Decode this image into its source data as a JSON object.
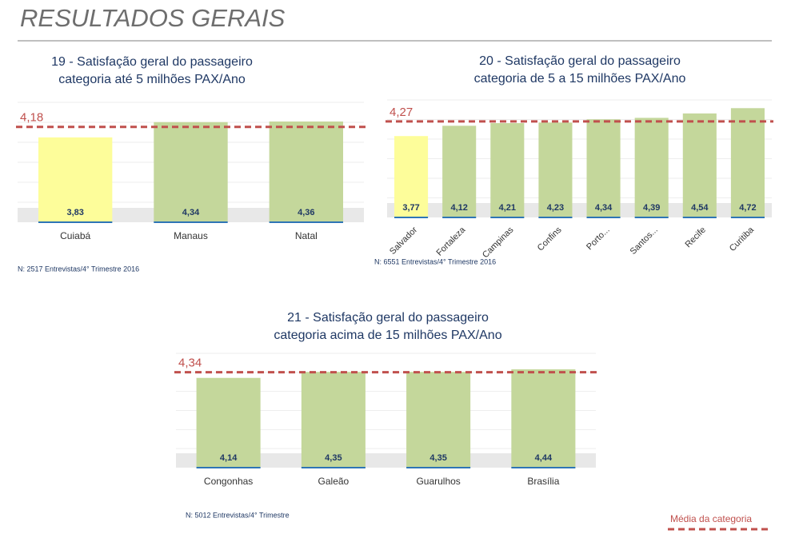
{
  "title": "RESULTADOS GERAIS",
  "legend": "Média da categoria",
  "chart_data": [
    {
      "type": "bar",
      "title": [
        "19 - Satisfação geral do passageiro",
        "categoria até 5 milhões PAX/Ano"
      ],
      "categories": [
        "Cuiabá",
        "Manaus",
        "Natal"
      ],
      "values": [
        3.83,
        4.34,
        4.36
      ],
      "value_labels": [
        "3,83",
        "4,34",
        "4,36"
      ],
      "colors": [
        "#fdfd9a",
        "#c4d79b",
        "#c4d79b"
      ],
      "ylim": [
        1,
        5
      ],
      "reference": {
        "value": 4.18,
        "label": "4,18",
        "color": "#c0504d"
      },
      "note": "N: 2517 Entrevistas/4° Trimestre 2016"
    },
    {
      "type": "bar",
      "title": [
        "20 - Satisfação geral do passageiro",
        "categoria de 5 a 15 milhões PAX/Ano"
      ],
      "categories": [
        "Salvador",
        "Fortaleza",
        "Campinas",
        "Confins",
        "Porto...",
        "Santos...",
        "Recife",
        "Curitiba"
      ],
      "values": [
        3.77,
        4.12,
        4.21,
        4.23,
        4.34,
        4.39,
        4.54,
        4.72
      ],
      "value_labels": [
        "3,77",
        "4,12",
        "4,21",
        "4,23",
        "4,34",
        "4,39",
        "4,54",
        "4,72"
      ],
      "colors": [
        "#fdfd9a",
        "#c4d79b",
        "#c4d79b",
        "#c4d79b",
        "#c4d79b",
        "#c4d79b",
        "#c4d79b",
        "#c4d79b"
      ],
      "ylim": [
        1,
        5
      ],
      "reference": {
        "value": 4.27,
        "label": "4,27",
        "color": "#c0504d"
      },
      "note": "N: 6551 Entrevistas/4° Trimestre 2016"
    },
    {
      "type": "bar",
      "title": [
        "21 - Satisfação geral do passageiro",
        "categoria acima de 15 milhões PAX/Ano"
      ],
      "categories": [
        "Congonhas",
        "Galeão",
        "Guarulhos",
        "Brasília"
      ],
      "values": [
        4.14,
        4.35,
        4.35,
        4.44
      ],
      "value_labels": [
        "4,14",
        "4,35",
        "4,35",
        "4,44"
      ],
      "colors": [
        "#c4d79b",
        "#c4d79b",
        "#c4d79b",
        "#c4d79b"
      ],
      "ylim": [
        1,
        5
      ],
      "reference": {
        "value": 4.34,
        "label": "4,34",
        "color": "#c0504d"
      },
      "note": "N: 5012 Entrevistas/4° Trimestre"
    }
  ]
}
